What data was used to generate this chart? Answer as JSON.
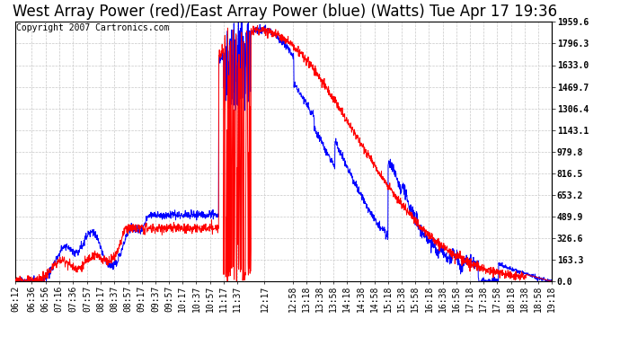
{
  "title": "West Array Power (red)/East Array Power (blue) (Watts) Tue Apr 17 19:36",
  "copyright": "Copyright 2007 Cartronics.com",
  "background_color": "#ffffff",
  "plot_bg_color": "#ffffff",
  "grid_color": "#c8c8c8",
  "red_color": "#ff0000",
  "blue_color": "#0000ff",
  "ylim": [
    0.0,
    1959.6
  ],
  "yticks": [
    0.0,
    163.3,
    326.6,
    489.9,
    653.2,
    816.5,
    979.8,
    1143.1,
    1306.4,
    1469.7,
    1633.0,
    1796.3,
    1959.6
  ],
  "xtick_labels": [
    "06:12",
    "06:36",
    "06:56",
    "07:16",
    "07:36",
    "07:57",
    "08:17",
    "08:37",
    "08:57",
    "09:17",
    "09:37",
    "09:57",
    "10:17",
    "10:37",
    "10:57",
    "11:17",
    "11:37",
    "12:17",
    "12:58",
    "13:18",
    "13:38",
    "13:58",
    "14:18",
    "14:38",
    "14:58",
    "15:18",
    "15:38",
    "15:58",
    "16:18",
    "16:38",
    "16:58",
    "17:18",
    "17:38",
    "17:58",
    "18:18",
    "18:38",
    "18:58",
    "19:18"
  ],
  "title_fontsize": 12,
  "tick_fontsize": 7,
  "copyright_fontsize": 7
}
